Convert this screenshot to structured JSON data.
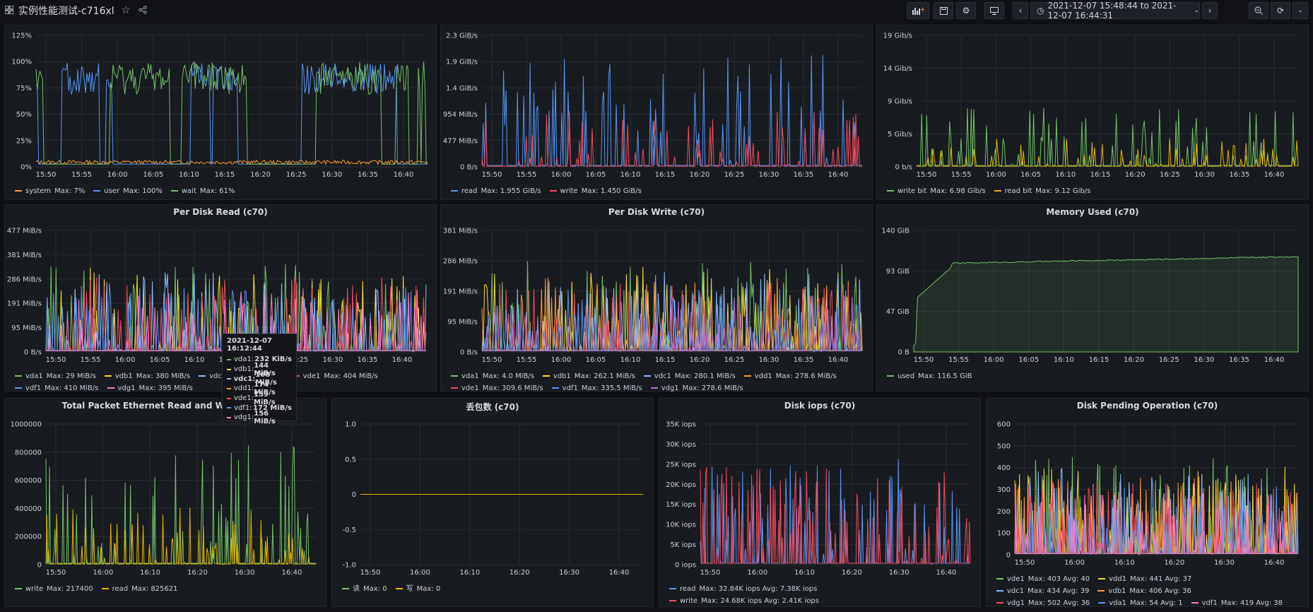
{
  "header": {
    "title": "实例性能测试-c716xl",
    "time_range": "2021-12-07 15:48:44 to 2021-12-07 16:44:31"
  },
  "colors": {
    "green": "#73bf69",
    "blue": "#5794f2",
    "orange": "#ff9830",
    "yellow": "#fade2a",
    "red": "#f2495c",
    "pink": "#ff78c9",
    "cyan": "#8ab8ff",
    "gold": "#e0b400",
    "purple": "#b877d9"
  },
  "time_ticks": [
    "15:50",
    "15:55",
    "16:00",
    "16:05",
    "16:10",
    "16:15",
    "16:20",
    "16:25",
    "16:30",
    "16:35",
    "16:40"
  ],
  "panels": [
    {
      "id": "cpu",
      "title": "",
      "y_ticks": [
        "0%",
        "25%",
        "50%",
        "75%",
        "100%",
        "125%"
      ],
      "legend": [
        {
          "name": "system",
          "stat": "Max: 7%",
          "color": "#ff9830"
        },
        {
          "name": "user",
          "stat": "Max: 100%",
          "color": "#5794f2"
        },
        {
          "name": "wait",
          "stat": "Max: 61%",
          "color": "#73bf69"
        }
      ]
    },
    {
      "id": "disk_rw",
      "title": "",
      "y_ticks": [
        "0 B/s",
        "477 MiB/s",
        "954 MiB/s",
        "1.4 GiB/s",
        "1.9 GiB/s",
        "2.3 GiB/s"
      ],
      "legend": [
        {
          "name": "read",
          "stat": "Max: 1.955 GiB/s",
          "color": "#5794f2"
        },
        {
          "name": "write",
          "stat": "Max: 1.450 GiB/s",
          "color": "#f2495c"
        }
      ]
    },
    {
      "id": "net_bit",
      "title": "",
      "y_ticks": [
        "0 b/s",
        "5 Gib/s",
        "9 Gib/s",
        "14 Gib/s",
        "19 Gib/s"
      ],
      "legend": [
        {
          "name": "write bit",
          "stat": "Max: 6.98 Gib/s",
          "color": "#73bf69"
        },
        {
          "name": "read bit",
          "stat": "Max: 9.12 Gib/s",
          "color": "#e0b400"
        }
      ]
    },
    {
      "id": "per_disk_read",
      "title": "Per Disk Read (c70)",
      "y_ticks": [
        "0 B/s",
        "95 MiB/s",
        "191 MiB/s",
        "286 MiB/s",
        "381 MiB/s",
        "477 MiB/s"
      ],
      "legend": [
        {
          "name": "vda1",
          "stat": "Max: 29 MiB/s",
          "color": "#73bf69"
        },
        {
          "name": "vdb1",
          "stat": "Max: 380 MiB/s",
          "color": "#fade2a"
        },
        {
          "name": "vdc1",
          "stat": "Max: 384 MiB/s",
          "color": "#8ab8ff"
        },
        {
          "name": "vde1",
          "stat": "Max: 404 MiB/s",
          "color": "#f2495c"
        },
        {
          "name": "vdf1",
          "stat": "Max: 410 MiB/s",
          "color": "#5794f2"
        },
        {
          "name": "vdg1",
          "stat": "Max: 395 MiB/s",
          "color": "#ff78c9"
        }
      ]
    },
    {
      "id": "per_disk_write",
      "title": "Per Disk Write (c70)",
      "y_ticks": [
        "0 B/s",
        "95 MiB/s",
        "191 MiB/s",
        "286 MiB/s",
        "381 MiB/s"
      ],
      "legend": [
        {
          "name": "vda1",
          "stat": "Max: 4.0 MiB/s",
          "color": "#73bf69"
        },
        {
          "name": "vdb1",
          "stat": "Max: 262.1 MiB/s",
          "color": "#fade2a"
        },
        {
          "name": "vdc1",
          "stat": "Max: 280.1 MiB/s",
          "color": "#8ab8ff"
        },
        {
          "name": "vdd1",
          "stat": "Max: 278.6 MiB/s",
          "color": "#ff9830"
        },
        {
          "name": "vde1",
          "stat": "Max: 309.6 MiB/s",
          "color": "#f2495c"
        },
        {
          "name": "vdf1",
          "stat": "Max: 335.5 MiB/s",
          "color": "#5794f2"
        },
        {
          "name": "vdg1",
          "stat": "Max: 278.6 MiB/s",
          "color": "#b877d9"
        }
      ]
    },
    {
      "id": "memory",
      "title": "Memory Used (c70)",
      "y_ticks": [
        "0 B",
        "47 GiB",
        "93 GiB",
        "140 GiB"
      ],
      "legend": [
        {
          "name": "used",
          "stat": "Max: 116.5 GiB",
          "color": "#73bf69"
        }
      ]
    },
    {
      "id": "packets",
      "title": "Total Packet Ethernet Read and Write (c70)",
      "y_ticks": [
        "0",
        "200000",
        "400000",
        "600000",
        "800000",
        "1000000"
      ],
      "x_ticks": [
        "15:50",
        "16:00",
        "16:10",
        "16:20",
        "16:30",
        "16:40"
      ],
      "legend": [
        {
          "name": "write",
          "stat": "Max: 217400",
          "color": "#73bf69"
        },
        {
          "name": "read",
          "stat": "Max: 825621",
          "color": "#e0b400"
        }
      ]
    },
    {
      "id": "drops",
      "title": "丢包数 (c70)",
      "y_ticks": [
        "-1.0",
        "-0.5",
        "0",
        "0.5",
        "1.0"
      ],
      "x_ticks": [
        "15:50",
        "16:00",
        "16:10",
        "16:20",
        "16:30",
        "16:40"
      ],
      "legend": [
        {
          "name": "读",
          "stat": "Max: 0",
          "color": "#73bf69"
        },
        {
          "name": "写",
          "stat": "Max: 0",
          "color": "#e0b400"
        }
      ]
    },
    {
      "id": "iops",
      "title": "Disk iops (c70)",
      "y_ticks": [
        "0 iops",
        "5K iops",
        "10K iops",
        "15K iops",
        "20K iops",
        "25K iops",
        "30K iops",
        "35K iops"
      ],
      "x_ticks": [
        "15:50",
        "16:00",
        "16:10",
        "16:20",
        "16:30",
        "16:40"
      ],
      "legend": [
        {
          "name": "read",
          "stat": "Max: 32.84K iops  Avg: 7.38K iops",
          "color": "#5794f2"
        },
        {
          "name": "write",
          "stat": "Max: 24.68K iops  Avg: 2.41K iops",
          "color": "#f2495c"
        }
      ]
    },
    {
      "id": "pending",
      "title": "Disk Pending Operation (c70)",
      "y_ticks": [
        "0",
        "100",
        "200",
        "300",
        "400",
        "500",
        "600"
      ],
      "x_ticks": [
        "15:50",
        "16:00",
        "16:10",
        "16:20",
        "16:30",
        "16:40"
      ],
      "legend": [
        {
          "name": "vde1",
          "stat": "Max: 403  Avg: 40",
          "color": "#73bf69"
        },
        {
          "name": "vdd1",
          "stat": "Max: 441  Avg: 37",
          "color": "#fade2a"
        },
        {
          "name": "vdc1",
          "stat": "Max: 434  Avg: 39",
          "color": "#8ab8ff"
        },
        {
          "name": "vdb1",
          "stat": "Max: 406  Avg: 36",
          "color": "#ff9830"
        },
        {
          "name": "vdg1",
          "stat": "Max: 502  Avg: 36",
          "color": "#f2495c"
        },
        {
          "name": "vda1",
          "stat": "Max: 54  Avg: 1",
          "color": "#5794f2"
        },
        {
          "name": "vdf1",
          "stat": "Max: 419  Avg: 38",
          "color": "#ff78c9"
        }
      ]
    }
  ],
  "tooltip": {
    "time": "2021-12-07 16:12:44",
    "rows": [
      {
        "name": "vda1:",
        "value": "232 KiB/s",
        "color": "#73bf69"
      },
      {
        "name": "vdb1:",
        "value": "144 MiB/s",
        "color": "#fade2a"
      },
      {
        "name": "vdc1:",
        "value": "168 MiB/s",
        "color": "#8ab8ff"
      },
      {
        "name": "vdd1:",
        "value": "174 MiB/s",
        "color": "#ff9830"
      },
      {
        "name": "vde1:",
        "value": "159 MiB/s",
        "color": "#f2495c"
      },
      {
        "name": "vdf1:",
        "value": "172 MiB/s",
        "color": "#5794f2"
      },
      {
        "name": "vdg1:",
        "value": "156 MiB/s",
        "color": "#ff78c9"
      }
    ]
  }
}
